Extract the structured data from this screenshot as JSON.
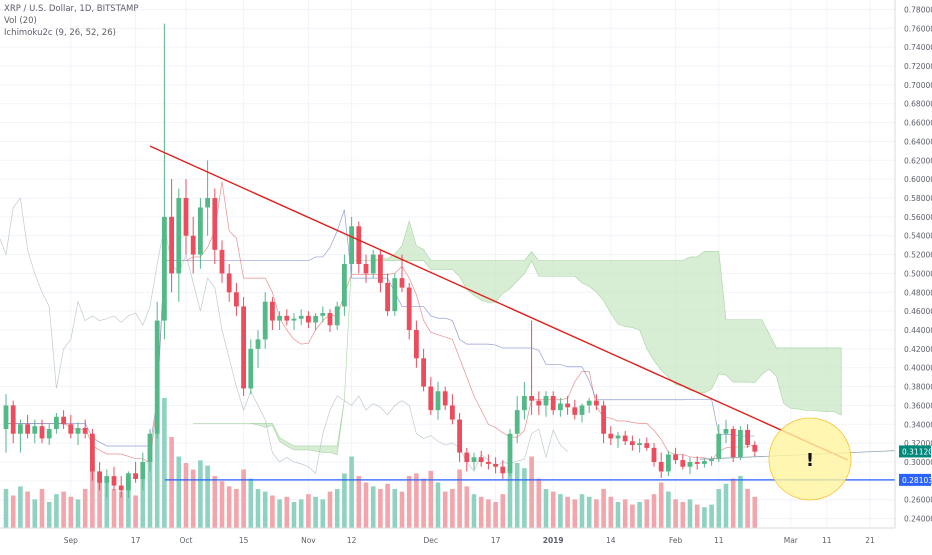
{
  "legend": {
    "symbol": "XRP / U.S. Dollar, 1D, BITSTAMP",
    "volume": "Vol (20)",
    "ichimoku": "Ichimoku2c (9, 26, 52, 26)"
  },
  "colors": {
    "up": "#53b987",
    "down": "#eb4d5c",
    "vol_up": "#8fd2c0",
    "vol_down": "#f2a5ab",
    "cloud": "#c9e7c5",
    "trendline": "#e0201b",
    "support": "#2962ff",
    "current_price": "#00897b",
    "highlight": "#fff59d"
  },
  "price_axis": {
    "ticks": [
      "0.78000",
      "0.76000",
      "0.74000",
      "0.72000",
      "0.70000",
      "0.68000",
      "0.66000",
      "0.64000",
      "0.62000",
      "0.60000",
      "0.58000",
      "0.56000",
      "0.54000",
      "0.52000",
      "0.50000",
      "0.48000",
      "0.46000",
      "0.44000",
      "0.42000",
      "0.40000",
      "0.38000",
      "0.36000",
      "0.34000",
      "0.32000",
      "0.30000",
      "0.28000",
      "0.26000",
      "0.24000"
    ],
    "current_price_label": "0.31120",
    "support_label": "0.28103"
  },
  "time_axis": {
    "labels": [
      "Sep",
      "17",
      "Oct",
      "15",
      "Nov",
      "12",
      "Dec",
      "17",
      "2019",
      "14",
      "Feb",
      "11",
      "Mar",
      "11",
      "21"
    ]
  },
  "annotation": {
    "alert": "!"
  },
  "chart_data": {
    "type": "candlestick",
    "title": "XRP / U.S. Dollar, 1D, BITSTAMP",
    "ylim": [
      0.23,
      0.79
    ],
    "x_labels": [
      "Sep",
      "17",
      "Oct",
      "15",
      "Nov",
      "12",
      "Dec",
      "17",
      "2019",
      "14",
      "Feb",
      "11",
      "Mar",
      "11",
      "21"
    ],
    "candles_ohlc": [
      [
        0.335,
        0.372,
        0.31,
        0.36
      ],
      [
        0.36,
        0.365,
        0.32,
        0.33
      ],
      [
        0.33,
        0.345,
        0.31,
        0.34
      ],
      [
        0.34,
        0.35,
        0.325,
        0.33
      ],
      [
        0.33,
        0.345,
        0.32,
        0.338
      ],
      [
        0.338,
        0.345,
        0.32,
        0.325
      ],
      [
        0.325,
        0.34,
        0.318,
        0.335
      ],
      [
        0.335,
        0.352,
        0.33,
        0.348
      ],
      [
        0.348,
        0.355,
        0.335,
        0.34
      ],
      [
        0.34,
        0.35,
        0.325,
        0.33
      ],
      [
        0.33,
        0.342,
        0.318,
        0.336
      ],
      [
        0.336,
        0.345,
        0.325,
        0.33
      ],
      [
        0.33,
        0.335,
        0.28,
        0.29
      ],
      [
        0.29,
        0.3,
        0.27,
        0.278
      ],
      [
        0.278,
        0.292,
        0.262,
        0.285
      ],
      [
        0.285,
        0.295,
        0.27,
        0.275
      ],
      [
        0.275,
        0.285,
        0.262,
        0.27
      ],
      [
        0.27,
        0.29,
        0.262,
        0.288
      ],
      [
        0.288,
        0.3,
        0.278,
        0.282
      ],
      [
        0.282,
        0.31,
        0.27,
        0.3
      ],
      [
        0.3,
        0.335,
        0.29,
        0.33
      ],
      [
        0.33,
        0.47,
        0.325,
        0.45
      ],
      [
        0.45,
        0.765,
        0.43,
        0.56
      ],
      [
        0.56,
        0.6,
        0.48,
        0.5
      ],
      [
        0.5,
        0.59,
        0.47,
        0.58
      ],
      [
        0.58,
        0.6,
        0.52,
        0.54
      ],
      [
        0.54,
        0.56,
        0.5,
        0.52
      ],
      [
        0.52,
        0.58,
        0.505,
        0.57
      ],
      [
        0.57,
        0.62,
        0.54,
        0.58
      ],
      [
        0.58,
        0.59,
        0.51,
        0.525
      ],
      [
        0.525,
        0.535,
        0.49,
        0.5
      ],
      [
        0.5,
        0.51,
        0.47,
        0.48
      ],
      [
        0.48,
        0.49,
        0.455,
        0.465
      ],
      [
        0.465,
        0.475,
        0.37,
        0.378
      ],
      [
        0.378,
        0.43,
        0.372,
        0.42
      ],
      [
        0.42,
        0.44,
        0.4,
        0.43
      ],
      [
        0.43,
        0.48,
        0.42,
        0.47
      ],
      [
        0.47,
        0.475,
        0.44,
        0.45
      ],
      [
        0.45,
        0.46,
        0.44,
        0.455
      ],
      [
        0.455,
        0.462,
        0.445,
        0.45
      ],
      [
        0.45,
        0.458,
        0.44,
        0.452
      ],
      [
        0.452,
        0.462,
        0.445,
        0.455
      ],
      [
        0.455,
        0.46,
        0.442,
        0.448
      ],
      [
        0.448,
        0.458,
        0.44,
        0.455
      ],
      [
        0.455,
        0.465,
        0.448,
        0.458
      ],
      [
        0.458,
        0.462,
        0.438,
        0.445
      ],
      [
        0.445,
        0.47,
        0.44,
        0.465
      ],
      [
        0.465,
        0.52,
        0.455,
        0.51
      ],
      [
        0.51,
        0.56,
        0.5,
        0.55
      ],
      [
        0.55,
        0.555,
        0.5,
        0.51
      ],
      [
        0.51,
        0.52,
        0.49,
        0.5
      ],
      [
        0.5,
        0.525,
        0.495,
        0.52
      ],
      [
        0.52,
        0.525,
        0.48,
        0.49
      ],
      [
        0.49,
        0.5,
        0.455,
        0.46
      ],
      [
        0.46,
        0.5,
        0.455,
        0.495
      ],
      [
        0.495,
        0.52,
        0.48,
        0.485
      ],
      [
        0.485,
        0.49,
        0.43,
        0.44
      ],
      [
        0.44,
        0.45,
        0.4,
        0.41
      ],
      [
        0.41,
        0.42,
        0.375,
        0.38
      ],
      [
        0.38,
        0.39,
        0.35,
        0.355
      ],
      [
        0.355,
        0.385,
        0.345,
        0.375
      ],
      [
        0.375,
        0.38,
        0.355,
        0.36
      ],
      [
        0.36,
        0.372,
        0.34,
        0.345
      ],
      [
        0.345,
        0.352,
        0.3,
        0.31
      ],
      [
        0.31,
        0.315,
        0.29,
        0.3
      ],
      [
        0.3,
        0.31,
        0.292,
        0.305
      ],
      [
        0.305,
        0.312,
        0.295,
        0.3
      ],
      [
        0.3,
        0.308,
        0.292,
        0.298
      ],
      [
        0.298,
        0.305,
        0.288,
        0.295
      ],
      [
        0.295,
        0.302,
        0.282,
        0.288
      ],
      [
        0.288,
        0.335,
        0.285,
        0.33
      ],
      [
        0.33,
        0.37,
        0.32,
        0.355
      ],
      [
        0.355,
        0.385,
        0.345,
        0.37
      ],
      [
        0.37,
        0.45,
        0.35,
        0.365
      ],
      [
        0.365,
        0.375,
        0.35,
        0.36
      ],
      [
        0.36,
        0.375,
        0.348,
        0.37
      ],
      [
        0.37,
        0.375,
        0.35,
        0.355
      ],
      [
        0.355,
        0.368,
        0.348,
        0.362
      ],
      [
        0.362,
        0.37,
        0.35,
        0.358
      ],
      [
        0.358,
        0.366,
        0.345,
        0.35
      ],
      [
        0.35,
        0.362,
        0.342,
        0.36
      ],
      [
        0.36,
        0.368,
        0.352,
        0.365
      ],
      [
        0.365,
        0.372,
        0.355,
        0.36
      ],
      [
        0.36,
        0.365,
        0.32,
        0.33
      ],
      [
        0.33,
        0.338,
        0.318,
        0.325
      ],
      [
        0.325,
        0.332,
        0.315,
        0.328
      ],
      [
        0.328,
        0.333,
        0.318,
        0.322
      ],
      [
        0.322,
        0.328,
        0.312,
        0.318
      ],
      [
        0.318,
        0.325,
        0.31,
        0.32
      ],
      [
        0.32,
        0.326,
        0.312,
        0.315
      ],
      [
        0.315,
        0.32,
        0.295,
        0.3
      ],
      [
        0.3,
        0.31,
        0.283,
        0.29
      ],
      [
        0.29,
        0.312,
        0.285,
        0.308
      ],
      [
        0.308,
        0.315,
        0.298,
        0.302
      ],
      [
        0.302,
        0.308,
        0.292,
        0.295
      ],
      [
        0.295,
        0.305,
        0.287,
        0.3
      ],
      [
        0.3,
        0.306,
        0.292,
        0.298
      ],
      [
        0.298,
        0.304,
        0.294,
        0.301
      ],
      [
        0.301,
        0.306,
        0.296,
        0.303
      ],
      [
        0.303,
        0.34,
        0.3,
        0.33
      ],
      [
        0.33,
        0.345,
        0.32,
        0.335
      ],
      [
        0.335,
        0.338,
        0.3,
        0.305
      ],
      [
        0.305,
        0.338,
        0.302,
        0.334
      ],
      [
        0.334,
        0.34,
        0.315,
        0.318
      ],
      [
        0.318,
        0.322,
        0.306,
        0.311
      ]
    ],
    "volume_relative": [
      0.3,
      0.25,
      0.32,
      0.28,
      0.22,
      0.3,
      0.2,
      0.26,
      0.28,
      0.24,
      0.22,
      0.3,
      0.55,
      0.4,
      0.35,
      0.3,
      0.28,
      0.38,
      0.25,
      0.45,
      0.6,
      0.75,
      1.0,
      0.7,
      0.55,
      0.5,
      0.45,
      0.52,
      0.48,
      0.4,
      0.36,
      0.32,
      0.3,
      0.45,
      0.38,
      0.3,
      0.28,
      0.25,
      0.22,
      0.24,
      0.2,
      0.22,
      0.26,
      0.24,
      0.22,
      0.28,
      0.3,
      0.42,
      0.55,
      0.4,
      0.35,
      0.32,
      0.3,
      0.34,
      0.3,
      0.28,
      0.4,
      0.42,
      0.38,
      0.44,
      0.35,
      0.28,
      0.3,
      0.45,
      0.32,
      0.26,
      0.24,
      0.22,
      0.2,
      0.26,
      0.42,
      0.5,
      0.46,
      0.55,
      0.38,
      0.3,
      0.28,
      0.26,
      0.24,
      0.22,
      0.26,
      0.24,
      0.22,
      0.3,
      0.24,
      0.2,
      0.22,
      0.18,
      0.2,
      0.22,
      0.26,
      0.35,
      0.28,
      0.22,
      0.2,
      0.22,
      0.18,
      0.16,
      0.18,
      0.3,
      0.34,
      0.38,
      0.4,
      0.3,
      0.24
    ],
    "trendline": {
      "start": [
        0.05,
        0.635
      ],
      "end": [
        0.995,
        0.302
      ]
    },
    "support_level": 0.28103,
    "current_price": 0.3112
  }
}
